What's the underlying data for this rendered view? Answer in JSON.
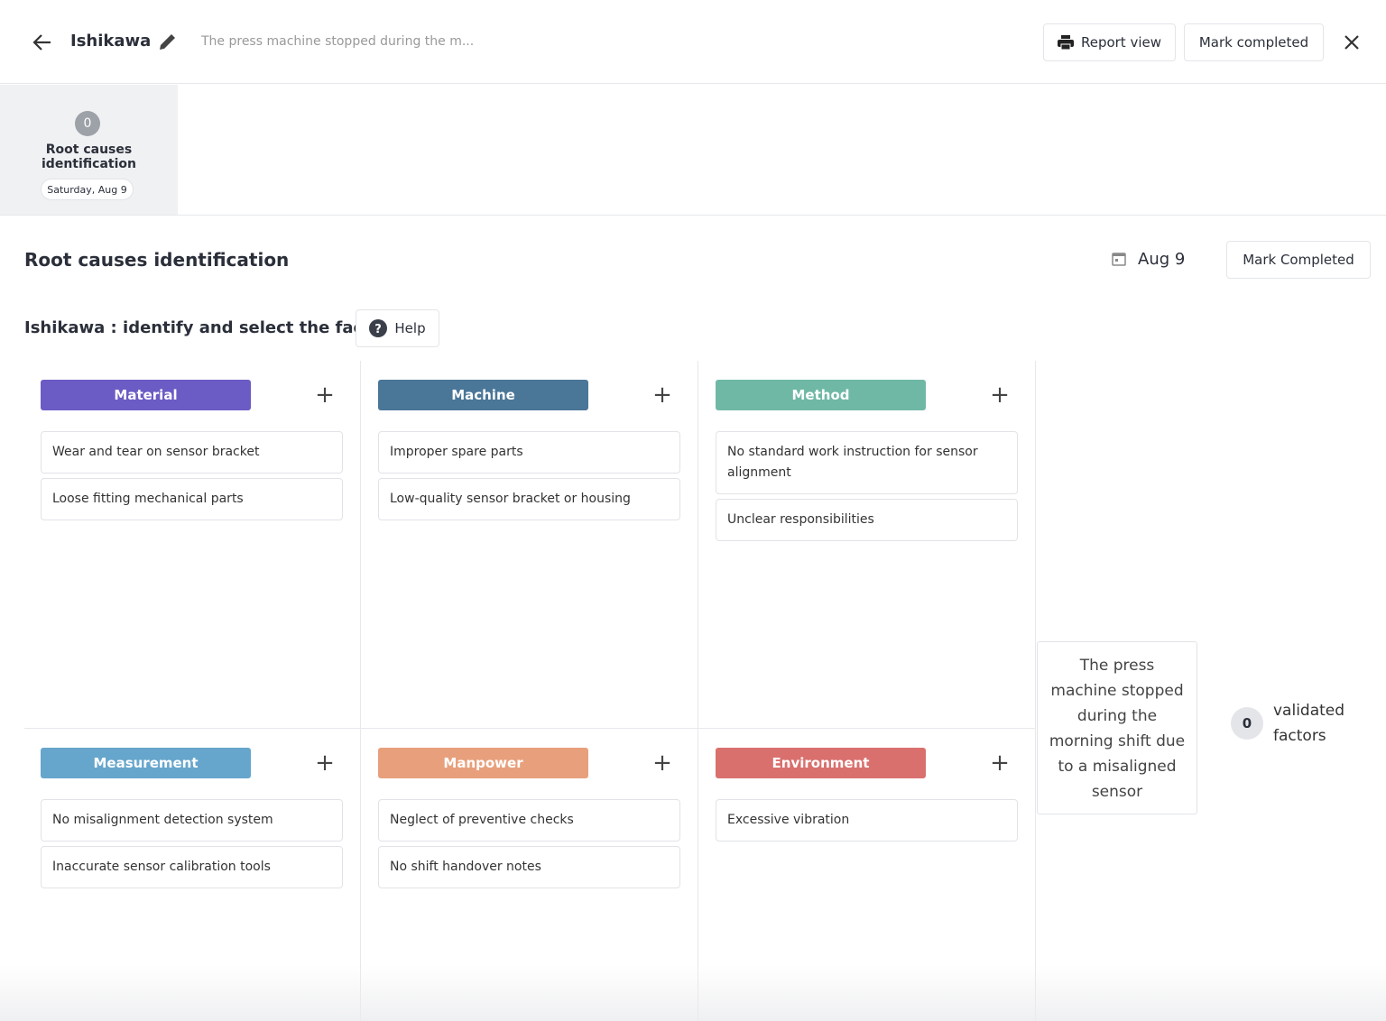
{
  "header": {
    "title": "Ishikawa",
    "subtitle": "The press machine stopped during the m...",
    "report_button": "Report view",
    "complete_button": "Mark completed"
  },
  "step": {
    "badge": "0",
    "label": "Root causes identification",
    "date": "Saturday, Aug 9"
  },
  "section": {
    "title": "Root causes identification",
    "date": "Aug 9",
    "button": "Mark Completed"
  },
  "prompt": {
    "text": "Ishikawa : identify and select the factors.",
    "help": "Help"
  },
  "categories": [
    {
      "name": "Material",
      "color": "#6b5bc4",
      "items": [
        "Wear and tear on sensor bracket",
        "Loose fitting mechanical parts"
      ]
    },
    {
      "name": "Machine",
      "color": "#4a7698",
      "items": [
        "Improper spare parts",
        "Low-quality sensor bracket or housing"
      ]
    },
    {
      "name": "Method",
      "color": "#6fb8a6",
      "items": [
        "No standard work instruction for sensor alignment",
        "Unclear responsibilities"
      ]
    },
    {
      "name": "Measurement",
      "color": "#66a6cc",
      "items": [
        "No misalignment detection system",
        "Inaccurate sensor calibration tools"
      ]
    },
    {
      "name": "Manpower",
      "color": "#e8a07c",
      "items": [
        "Neglect of preventive checks",
        "No shift handover notes"
      ]
    },
    {
      "name": "Environment",
      "color": "#d9706e",
      "items": [
        "Excessive vibration"
      ]
    }
  ],
  "problem": "The press machine stopped during the morning shift due to a misaligned sensor",
  "validated": {
    "count": "0",
    "label": "validated factors"
  }
}
